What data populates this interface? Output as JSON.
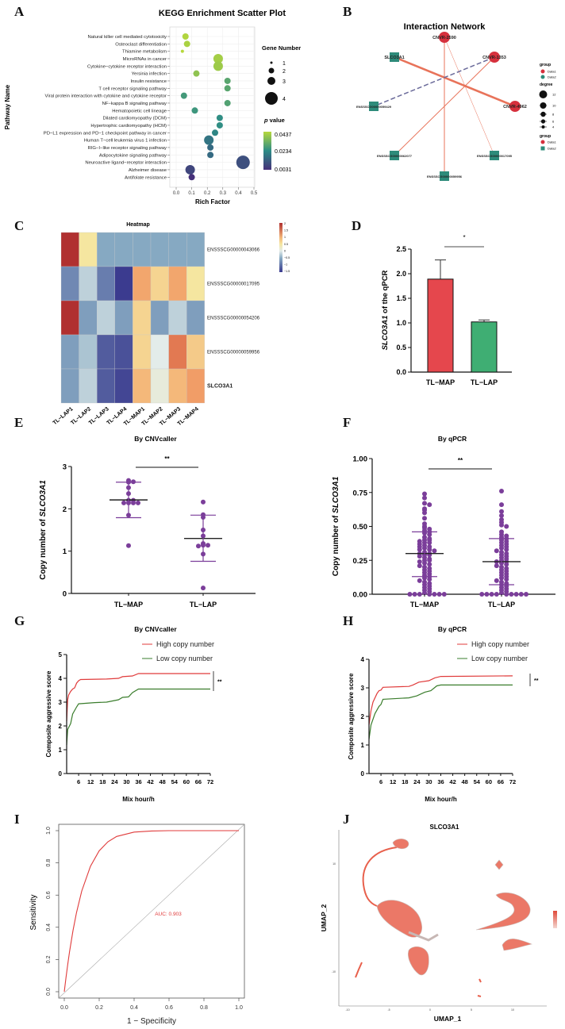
{
  "figure": {
    "panel_labels": [
      "A",
      "B",
      "C",
      "D",
      "E",
      "F",
      "G",
      "H",
      "I",
      "J"
    ]
  },
  "chart_data": [
    {
      "panel": "A",
      "type": "scatter",
      "title": "KEGG Enrichment Scatter Plot",
      "xlabel": "Rich Factor",
      "ylabel": "Pathway Name",
      "xlim": [
        0,
        0.5
      ],
      "xticks": [
        "0.0",
        "0.1",
        "0.2",
        "0.3",
        "0.4",
        "0.5"
      ],
      "grid": true,
      "size_legend": {
        "title": "Gene Number",
        "values": [
          "1",
          "2",
          "3",
          "4"
        ]
      },
      "color_legend": {
        "title_italic": "p",
        "title_rest": " value",
        "ticks": [
          "0.0437",
          "0.0234",
          "0.0031"
        ],
        "range": [
          0.0031,
          0.0437
        ],
        "colors": [
          "#46307a",
          "#2c8c86",
          "#b6d83c"
        ]
      },
      "pathways": [
        {
          "name": "Natural killer cell mediated cytotoxicity",
          "rich_factor": 0.06,
          "gene_number": 2,
          "p_value": 0.043
        },
        {
          "name": "Osteoclast differentiation",
          "rich_factor": 0.07,
          "gene_number": 2,
          "p_value": 0.042
        },
        {
          "name": "Thiamine metabolism",
          "rich_factor": 0.04,
          "gene_number": 1,
          "p_value": 0.0437
        },
        {
          "name": "MicroRNAs in cancer",
          "rich_factor": 0.27,
          "gene_number": 3,
          "p_value": 0.041
        },
        {
          "name": "Cytokine−cytokine receptor interaction",
          "rich_factor": 0.27,
          "gene_number": 3,
          "p_value": 0.04
        },
        {
          "name": "Yersinia infection",
          "rich_factor": 0.13,
          "gene_number": 2,
          "p_value": 0.038
        },
        {
          "name": "Insulin resistance",
          "rich_factor": 0.33,
          "gene_number": 2,
          "p_value": 0.03
        },
        {
          "name": "T cell receptor signaling pathway",
          "rich_factor": 0.33,
          "gene_number": 2,
          "p_value": 0.03
        },
        {
          "name": "Viral protein interaction with cytokine and cytokine receptor",
          "rich_factor": 0.05,
          "gene_number": 2,
          "p_value": 0.027
        },
        {
          "name": "NF−kappa B signaling pathway",
          "rich_factor": 0.33,
          "gene_number": 2,
          "p_value": 0.029
        },
        {
          "name": "Hematopoietic cell lineage",
          "rich_factor": 0.12,
          "gene_number": 2,
          "p_value": 0.026
        },
        {
          "name": "Dilated cardiomyopathy (DCM)",
          "rich_factor": 0.28,
          "gene_number": 2,
          "p_value": 0.024
        },
        {
          "name": "Hypertrophic cardiomyopathy (HCM)",
          "rich_factor": 0.28,
          "gene_number": 2,
          "p_value": 0.024
        },
        {
          "name": "PD−L1 expression and PD−1 checkpoint pathway in cancer",
          "rich_factor": 0.25,
          "gene_number": 2,
          "p_value": 0.022
        },
        {
          "name": "Human T−cell leukemia virus 1 infection",
          "rich_factor": 0.21,
          "gene_number": 3,
          "p_value": 0.018
        },
        {
          "name": "RIG−I−like receptor signaling pathway",
          "rich_factor": 0.22,
          "gene_number": 2,
          "p_value": 0.016
        },
        {
          "name": "Adipocytokine signaling pathway",
          "rich_factor": 0.22,
          "gene_number": 2,
          "p_value": 0.016
        },
        {
          "name": "Neuroactive ligand−receptor interaction",
          "rich_factor": 0.43,
          "gene_number": 4,
          "p_value": 0.01
        },
        {
          "name": "Alzheimer disease",
          "rich_factor": 0.09,
          "gene_number": 3,
          "p_value": 0.008
        },
        {
          "name": "Antifolate resistance",
          "rich_factor": 0.1,
          "gene_number": 2,
          "p_value": 0.0031
        }
      ]
    },
    {
      "panel": "B",
      "type": "network",
      "title": "Interaction Network",
      "nodes": [
        {
          "id": "CNVR-2590",
          "group": "Data1"
        },
        {
          "id": "SLCO3A1",
          "group": "Data2"
        },
        {
          "id": "CNVR-1353",
          "group": "Data1"
        },
        {
          "id": "ENSSSCG00000059429",
          "group": "Data2"
        },
        {
          "id": "CNVR-4962",
          "group": "Data1"
        },
        {
          "id": "ENSSSCG00000062077",
          "group": "Data2"
        },
        {
          "id": "ENSSSCG00000017095",
          "group": "Data2"
        },
        {
          "id": "ENSSSCG00000059956",
          "group": "Data2"
        }
      ],
      "edges": [
        {
          "source": "SLCO3A1",
          "target": "CNVR-4962",
          "style": "solid",
          "strength": "strong"
        },
        {
          "source": "CNVR-2590",
          "target": "ENSSSCG00000059956",
          "style": "solid",
          "strength": "medium"
        },
        {
          "source": "CNVR-2590",
          "target": "ENSSSCG00000017095",
          "style": "solid",
          "strength": "weak"
        },
        {
          "source": "CNVR-1353",
          "target": "ENSSSCG00000062077",
          "style": "solid",
          "strength": "medium"
        },
        {
          "source": "CNVR-1353",
          "target": "ENSSSCG00000059429",
          "style": "dashed",
          "strength": "medium"
        }
      ],
      "colors": {
        "Data1": "#d6303d",
        "Data2": "#2e8b7a",
        "edge": "#e8735a",
        "dashed_edge": "#6a6a9a"
      },
      "legend": {
        "group_title": "group",
        "groups": [
          "Data1",
          "Data2"
        ],
        "degree_title": "degree",
        "degrees": [
          "12",
          "10",
          "8",
          "6",
          "4"
        ]
      }
    },
    {
      "panel": "C",
      "type": "heatmap",
      "title": "Heatmap",
      "columns": [
        "TL−LAP1",
        "TL−LAP2",
        "TL−LAP3",
        "TL−LAP4",
        "TL−MAP1",
        "TL−MAP2",
        "TL−MAP3",
        "TL−MAP4"
      ],
      "rows": [
        "ENSSSCG00000043066",
        "ENSSSCG00000017095",
        "ENSSSCG00000054206",
        "ENSSSCG00000059956",
        "SLCO3A1"
      ],
      "values": [
        [
          2.0,
          0.5,
          -0.5,
          -0.5,
          -0.5,
          -0.5,
          -0.5,
          -0.5
        ],
        [
          -0.8,
          -0.2,
          -0.9,
          -1.5,
          1.2,
          0.7,
          1.2,
          0.5
        ],
        [
          2.0,
          -0.6,
          -0.2,
          -0.6,
          0.7,
          -0.6,
          -0.2,
          -0.6
        ],
        [
          -0.6,
          -0.3,
          -1.2,
          -1.3,
          0.7,
          0.0,
          1.6,
          0.8
        ],
        [
          -0.6,
          -0.2,
          -1.2,
          -1.4,
          1.0,
          0.1,
          1.0,
          1.3
        ]
      ],
      "color_range": [
        -1.5,
        2
      ],
      "colorbar_ticks": [
        "2",
        "1.5",
        "1",
        "0.5",
        "0",
        "−0.5",
        "−1",
        "−1.5"
      ]
    },
    {
      "panel": "D",
      "type": "bar",
      "categories": [
        "TL−MAP",
        "TL−LAP"
      ],
      "values": [
        1.89,
        1.02
      ],
      "error_upper": [
        2.28,
        1.06
      ],
      "colors": [
        "#e5474d",
        "#3fae73"
      ],
      "ylabel_italic": "SLCO3A1",
      "ylabel_rest": " of the qPCR",
      "ylim": [
        0,
        2.5
      ],
      "yticks": [
        "0.0",
        "0.5",
        "1.0",
        "1.5",
        "2.0",
        "2.5"
      ],
      "significance": "*"
    },
    {
      "panel": "E",
      "type": "scatter",
      "title": "By CNVcaller",
      "categories": [
        "TL−MAP",
        "TL−LAP"
      ],
      "ylabel_rest": "Copy number of ",
      "ylabel_italic": "SLCO3A1",
      "ylim": [
        0,
        3
      ],
      "yticks": [
        "0",
        "1",
        "2",
        "3"
      ],
      "significance": "**",
      "point_color": "#7b3e9a",
      "groups": [
        {
          "values": [
            2.67,
            2.63,
            2.64,
            2.5,
            2.36,
            2.2,
            2.14,
            2.14,
            2.14,
            2.14,
            2.2,
            1.85,
            1.13
          ],
          "mean": 2.21,
          "sd_low": 1.79,
          "sd_high": 2.63
        },
        {
          "values": [
            2.16,
            1.86,
            1.8,
            1.5,
            1.36,
            1.14,
            1.14,
            1.12,
            1.18,
            0.93,
            0.13
          ],
          "mean": 1.3,
          "sd_low": 0.76,
          "sd_high": 1.85
        }
      ]
    },
    {
      "panel": "F",
      "type": "scatter",
      "title": "By qPCR",
      "categories": [
        "TL−MAP",
        "TL−LAP"
      ],
      "ylabel_rest": "Copy number of ",
      "ylabel_italic": "SLCO3A1",
      "ylim": [
        0,
        1
      ],
      "yticks": [
        "0.00",
        "0.25",
        "0.50",
        "0.75",
        "1.00"
      ],
      "significance": "**",
      "point_color": "#7b3e9a",
      "groups": [
        {
          "values": [
            0.74,
            0.71,
            0.67,
            0.66,
            0.63,
            0.62,
            0.6,
            0.56,
            0.52,
            0.5,
            0.49,
            0.48,
            0.47,
            0.46,
            0.45,
            0.44,
            0.42,
            0.41,
            0.4,
            0.4,
            0.39,
            0.38,
            0.38,
            0.37,
            0.36,
            0.35,
            0.35,
            0.34,
            0.33,
            0.33,
            0.32,
            0.31,
            0.3,
            0.3,
            0.29,
            0.29,
            0.28,
            0.27,
            0.26,
            0.25,
            0.25,
            0.24,
            0.23,
            0.22,
            0.21,
            0.2,
            0.19,
            0.18,
            0.17,
            0.16,
            0.15,
            0.14,
            0.13,
            0.12,
            0.11,
            0.1,
            0.09,
            0.08,
            0.07,
            0.06,
            0.05,
            0.04,
            0.03,
            0.02,
            0.01,
            0,
            0,
            0,
            0,
            0,
            0,
            0
          ],
          "mean": 0.3,
          "sd_low": 0.13,
          "sd_high": 0.46
        },
        {
          "values": [
            0.76,
            0.66,
            0.61,
            0.58,
            0.55,
            0.53,
            0.51,
            0.5,
            0.46,
            0.44,
            0.43,
            0.42,
            0.41,
            0.4,
            0.39,
            0.38,
            0.37,
            0.36,
            0.35,
            0.34,
            0.33,
            0.32,
            0.31,
            0.3,
            0.29,
            0.28,
            0.27,
            0.26,
            0.25,
            0.24,
            0.24,
            0.23,
            0.22,
            0.21,
            0.2,
            0.19,
            0.18,
            0.17,
            0.16,
            0.15,
            0.14,
            0.13,
            0.12,
            0.11,
            0.1,
            0.09,
            0.08,
            0.07,
            0.06,
            0.05,
            0.04,
            0.03,
            0.02,
            0.01,
            0,
            0,
            0,
            0,
            0,
            0,
            0,
            0,
            0
          ],
          "mean": 0.24,
          "sd_low": 0.07,
          "sd_high": 0.41
        }
      ]
    },
    {
      "panel": "G",
      "type": "line",
      "title": "By CNVcaller",
      "xlabel": "Mix hour/h",
      "ylabel": "Composite aggressive score",
      "xlim": [
        0,
        72
      ],
      "xticks": [
        "6",
        "12",
        "18",
        "24",
        "30",
        "36",
        "42",
        "48",
        "54",
        "60",
        "66",
        "72"
      ],
      "ylim": [
        0,
        5
      ],
      "yticks": [
        "0",
        "1",
        "2",
        "3",
        "4",
        "5"
      ],
      "significance": "**",
      "series": [
        {
          "name": "High copy number",
          "color": "#e03b3b",
          "x": [
            0,
            0.5,
            1,
            2,
            3,
            4,
            5,
            6,
            7,
            20,
            26,
            28,
            33,
            36,
            72
          ],
          "y": [
            2.2,
            3.1,
            3.3,
            3.45,
            3.55,
            3.6,
            3.8,
            3.9,
            3.95,
            3.97,
            4.0,
            4.07,
            4.1,
            4.2,
            4.2
          ]
        },
        {
          "name": "Low copy number",
          "color": "#3a7d2c",
          "x": [
            0,
            0.5,
            2,
            3,
            5,
            6,
            14,
            20,
            26,
            28,
            31,
            33,
            36,
            72
          ],
          "y": [
            1.2,
            1.85,
            2.1,
            2.5,
            2.8,
            2.93,
            2.98,
            3.0,
            3.1,
            3.2,
            3.22,
            3.4,
            3.55,
            3.55
          ]
        }
      ]
    },
    {
      "panel": "H",
      "type": "line",
      "title": "By qPCR",
      "xlabel": "Mix hour/h",
      "ylabel": "Composite aggressive score",
      "xlim": [
        0,
        72
      ],
      "xticks": [
        "6",
        "12",
        "18",
        "24",
        "30",
        "36",
        "42",
        "48",
        "54",
        "60",
        "66",
        "72"
      ],
      "ylim": [
        0,
        4
      ],
      "yticks": [
        "0",
        "1",
        "2",
        "3",
        "4"
      ],
      "significance": "**",
      "series": [
        {
          "name": "High copy number",
          "color": "#e03b3b",
          "x": [
            0,
            1,
            2,
            4,
            5,
            6,
            7,
            20,
            22,
            25,
            30,
            33,
            36,
            72
          ],
          "y": [
            1.7,
            2.2,
            2.5,
            2.8,
            2.9,
            2.92,
            3.02,
            3.05,
            3.1,
            3.2,
            3.25,
            3.35,
            3.4,
            3.42
          ]
        },
        {
          "name": "Low copy number",
          "color": "#3a7d2c",
          "x": [
            0,
            1,
            3,
            5,
            6,
            7,
            20,
            24,
            28,
            31,
            34,
            36,
            72
          ],
          "y": [
            1.2,
            1.7,
            2.1,
            2.35,
            2.42,
            2.6,
            2.65,
            2.72,
            2.85,
            2.9,
            3.07,
            3.1,
            3.1
          ]
        }
      ]
    },
    {
      "panel": "I",
      "type": "line",
      "xlabel": "1 − Specificity",
      "ylabel": "Sensitivity",
      "xlim": [
        0,
        1
      ],
      "ylim": [
        0,
        1
      ],
      "xticks": [
        "0.0",
        "0.2",
        "0.4",
        "0.6",
        "0.8",
        "1.0"
      ],
      "yticks": [
        "0.0",
        "0.2",
        "0.4",
        "0.6",
        "0.8",
        "1.0"
      ],
      "annotation": "AUC: 0.903",
      "series": [
        {
          "color": "#e03b3b",
          "x": [
            0,
            0.01,
            0.02,
            0.03,
            0.05,
            0.07,
            0.1,
            0.15,
            0.2,
            0.25,
            0.3,
            0.4,
            0.5,
            0.6,
            0.8,
            1.0
          ],
          "y": [
            0,
            0.089,
            0.171,
            0.247,
            0.38,
            0.491,
            0.625,
            0.779,
            0.875,
            0.931,
            0.964,
            0.991,
            0.998,
            1.0,
            1.0,
            1.0
          ]
        }
      ]
    },
    {
      "panel": "J",
      "type": "scatter",
      "title": "SLCO3A1",
      "xlabel": "UMAP_1",
      "ylabel": "UMAP_2",
      "xticks": [
        "-10",
        "-5",
        "0",
        "5",
        "10"
      ],
      "yticks": [
        "10",
        "-10"
      ],
      "color": "#e8604c"
    }
  ]
}
